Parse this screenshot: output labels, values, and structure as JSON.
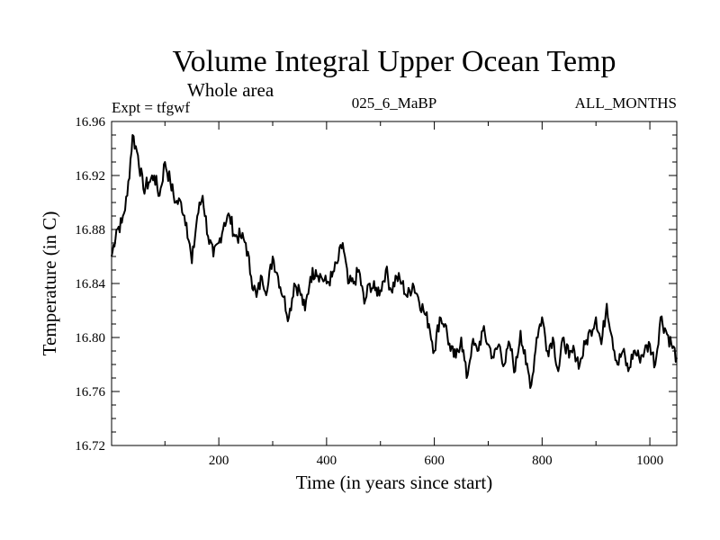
{
  "chart_data": {
    "type": "line",
    "title": "Volume Integral Upper Ocean Temp",
    "subtitle": "Whole area",
    "expt_label": "Expt = tfgwf",
    "run_label": "025_6_MaBP",
    "months_label": "ALL_MONTHS",
    "xlabel": "Time (in years since start)",
    "ylabel": "Temperature (in C)",
    "xlim": [
      1,
      1050
    ],
    "ylim": [
      16.72,
      16.96
    ],
    "xticks": [
      200,
      400,
      600,
      800,
      1000
    ],
    "yticks": [
      16.72,
      16.76,
      16.8,
      16.84,
      16.88,
      16.92,
      16.96
    ],
    "ytick_labels": [
      "16.72",
      "16.76",
      "16.80",
      "16.84",
      "16.88",
      "16.92",
      "16.96"
    ],
    "grid": false,
    "series": [
      {
        "name": "tfgwf",
        "x": [
          1,
          10,
          20,
          30,
          40,
          50,
          60,
          70,
          80,
          90,
          100,
          110,
          120,
          130,
          140,
          150,
          160,
          170,
          180,
          190,
          200,
          210,
          220,
          230,
          240,
          250,
          260,
          270,
          280,
          290,
          300,
          310,
          320,
          330,
          340,
          350,
          360,
          370,
          380,
          390,
          400,
          410,
          420,
          430,
          440,
          450,
          460,
          470,
          480,
          490,
          500,
          510,
          520,
          530,
          540,
          550,
          560,
          570,
          580,
          590,
          600,
          610,
          620,
          630,
          640,
          650,
          660,
          670,
          680,
          690,
          700,
          710,
          720,
          730,
          740,
          750,
          760,
          770,
          780,
          790,
          800,
          810,
          820,
          830,
          840,
          850,
          860,
          870,
          880,
          890,
          900,
          910,
          920,
          930,
          940,
          950,
          960,
          970,
          980,
          990,
          1000,
          1010,
          1020,
          1030,
          1040,
          1050
        ],
        "y": [
          16.86,
          16.88,
          16.885,
          16.905,
          16.95,
          16.935,
          16.91,
          16.915,
          16.92,
          16.905,
          16.93,
          16.915,
          16.9,
          16.9,
          16.885,
          16.855,
          16.89,
          16.905,
          16.875,
          16.86,
          16.87,
          16.885,
          16.89,
          16.875,
          16.875,
          16.87,
          16.845,
          16.83,
          16.845,
          16.835,
          16.86,
          16.845,
          16.83,
          16.815,
          16.84,
          16.835,
          16.82,
          16.845,
          16.85,
          16.845,
          16.84,
          16.845,
          16.855,
          16.87,
          16.84,
          16.84,
          16.85,
          16.825,
          16.84,
          16.835,
          16.835,
          16.85,
          16.835,
          16.845,
          16.84,
          16.83,
          16.84,
          16.83,
          16.82,
          16.81,
          16.79,
          16.815,
          16.81,
          16.79,
          16.785,
          16.8,
          16.77,
          16.795,
          16.79,
          16.805,
          16.795,
          16.785,
          16.795,
          16.78,
          16.795,
          16.775,
          16.805,
          16.78,
          16.765,
          16.8,
          16.815,
          16.79,
          16.8,
          16.775,
          16.8,
          16.785,
          16.79,
          16.78,
          16.795,
          16.805,
          16.815,
          16.795,
          16.825,
          16.8,
          16.78,
          16.79,
          16.775,
          16.79,
          16.785,
          16.79,
          16.795,
          16.78,
          16.815,
          16.805,
          16.795,
          16.785
        ]
      }
    ]
  }
}
